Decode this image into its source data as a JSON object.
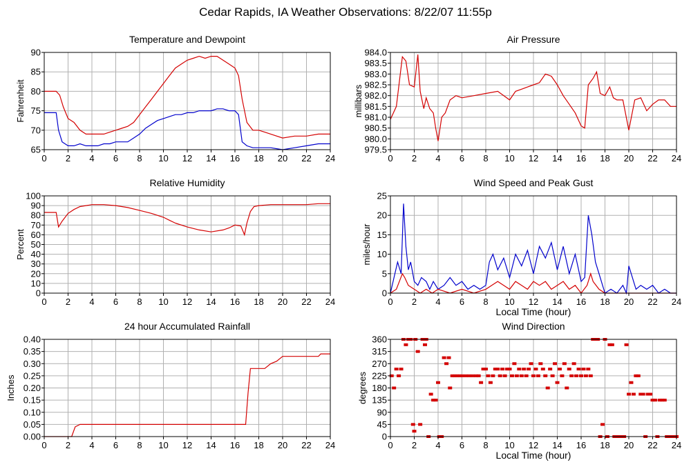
{
  "page": {
    "title": "Cedar Rapids, IA Weather Observations: 8/22/07 11:55p"
  },
  "colors": {
    "red": "#d40000",
    "blue": "#0000cc",
    "grid": "#b0b0b0",
    "frame": "#000000"
  },
  "chart_data": [
    {
      "id": "temp",
      "type": "line",
      "title": "Temperature and Dewpoint",
      "xlabel": "",
      "ylabel": "Fahrenheit",
      "xlim": [
        0,
        24
      ],
      "ylim": [
        65,
        90
      ],
      "xticks": [
        0,
        2,
        4,
        6,
        8,
        10,
        12,
        14,
        16,
        18,
        20,
        22,
        24
      ],
      "yticks": [
        65,
        70,
        75,
        80,
        85,
        90
      ],
      "grid": true,
      "series": [
        {
          "color": "#d40000",
          "x": [
            0,
            1,
            1.3,
            1.6,
            2,
            2.5,
            3,
            3.5,
            4,
            4.5,
            5,
            5.5,
            6,
            6.5,
            7,
            7.5,
            8,
            8.5,
            9,
            9.5,
            10,
            10.5,
            11,
            11.5,
            12,
            12.5,
            13,
            13.5,
            14,
            14.5,
            15,
            15.5,
            16,
            16.3,
            16.6,
            17,
            17.5,
            18,
            19,
            20,
            21,
            22,
            23,
            24
          ],
          "y": [
            80,
            80,
            79,
            76,
            73,
            72,
            70,
            69,
            69,
            69,
            69,
            69.5,
            70,
            70.5,
            71,
            72,
            74,
            76,
            78,
            80,
            82,
            84,
            86,
            87,
            88,
            88.5,
            89,
            88.5,
            89,
            89,
            88,
            87,
            86,
            84,
            78,
            72,
            70,
            70,
            69,
            68,
            68.5,
            68.5,
            69,
            69
          ]
        },
        {
          "color": "#0000cc",
          "x": [
            0,
            1,
            1.2,
            1.5,
            2,
            2.5,
            3,
            3.5,
            4,
            4.5,
            5,
            5.5,
            6,
            6.5,
            7,
            7.5,
            8,
            8.5,
            9,
            9.5,
            10,
            10.5,
            11,
            11.5,
            12,
            12.5,
            13,
            13.5,
            14,
            14.5,
            15,
            15.5,
            16,
            16.3,
            16.6,
            17,
            17.5,
            18,
            19,
            20,
            21,
            22,
            23,
            24
          ],
          "y": [
            74.5,
            74.5,
            70,
            67,
            66,
            66,
            66.5,
            66,
            66,
            66,
            66.5,
            66.5,
            67,
            67,
            67,
            68,
            69,
            70.5,
            71.5,
            72.5,
            73,
            73.5,
            74,
            74,
            74.5,
            74.5,
            75,
            75,
            75,
            75.5,
            75.5,
            75,
            75,
            74,
            67,
            66,
            65.5,
            65.5,
            65.5,
            65,
            65.5,
            66,
            66.5,
            66.5
          ]
        }
      ]
    },
    {
      "id": "pressure",
      "type": "line",
      "title": "Air Pressure",
      "xlabel": "",
      "ylabel": "millibars",
      "xlim": [
        0,
        24
      ],
      "ylim": [
        979.5,
        984.0
      ],
      "xticks": [
        0,
        2,
        4,
        6,
        8,
        10,
        12,
        14,
        16,
        18,
        20,
        22,
        24
      ],
      "yticks": [
        "979.5",
        "980.0",
        "980.5",
        "981.0",
        "981.5",
        "982.0",
        "982.5",
        "983.0",
        "983.5",
        "984.0"
      ],
      "grid": true,
      "series": [
        {
          "color": "#d40000",
          "x": [
            0,
            0.5,
            1,
            1.3,
            1.6,
            2,
            2.3,
            2.5,
            2.8,
            3,
            3.3,
            3.6,
            3.8,
            4,
            4.3,
            4.6,
            5,
            5.5,
            6,
            7,
            8,
            9,
            10,
            10.5,
            11,
            12,
            12.5,
            13,
            13.5,
            14,
            14.5,
            15,
            15.5,
            16,
            16.3,
            16.6,
            17,
            17.3,
            17.6,
            18,
            18.4,
            18.7,
            19,
            19.5,
            20,
            20.5,
            21,
            21.5,
            22,
            22.5,
            23,
            23.5,
            24
          ],
          "y": [
            980.9,
            981.5,
            983.8,
            983.6,
            982.5,
            982.4,
            983.9,
            982.2,
            981.4,
            981.9,
            981.4,
            981.2,
            980.5,
            979.9,
            981.0,
            981.2,
            981.8,
            982.0,
            981.9,
            982.0,
            982.1,
            982.2,
            981.8,
            982.2,
            982.3,
            982.5,
            982.6,
            983.0,
            982.9,
            982.5,
            982.0,
            981.6,
            981.2,
            980.6,
            980.5,
            982.5,
            982.8,
            983.1,
            982.1,
            982.0,
            982.4,
            981.9,
            981.8,
            981.8,
            980.4,
            981.8,
            981.9,
            981.3,
            981.6,
            981.8,
            981.8,
            981.5,
            981.5
          ]
        }
      ]
    },
    {
      "id": "rh",
      "type": "line",
      "title": "Relative Humidity",
      "xlabel": "",
      "ylabel": "Percent",
      "xlim": [
        0,
        24
      ],
      "ylim": [
        0,
        100
      ],
      "xticks": [
        0,
        2,
        4,
        6,
        8,
        10,
        12,
        14,
        16,
        18,
        20,
        22,
        24
      ],
      "yticks": [
        0,
        10,
        20,
        30,
        40,
        50,
        60,
        70,
        80,
        90,
        100
      ],
      "grid": true,
      "series": [
        {
          "color": "#d40000",
          "x": [
            0,
            1,
            1.2,
            1.5,
            2,
            2.5,
            3,
            3.5,
            4,
            4.5,
            5,
            6,
            7,
            8,
            9,
            10,
            10.5,
            11,
            12,
            13,
            14,
            15,
            15.5,
            16,
            16.5,
            16.8,
            17,
            17.3,
            17.6,
            18,
            19,
            20,
            21,
            22,
            23,
            24
          ],
          "y": [
            83,
            83,
            68,
            74,
            82,
            86,
            89,
            90,
            91,
            91,
            91,
            90,
            88,
            85,
            82,
            78,
            75,
            72,
            68,
            65,
            63,
            65,
            67,
            70,
            69,
            60,
            72,
            84,
            89,
            90,
            91,
            91,
            91,
            91,
            92,
            92
          ]
        }
      ]
    },
    {
      "id": "wind",
      "type": "line",
      "title": "Wind Speed and Peak Gust",
      "xlabel": "Local Time (hour)",
      "ylabel": "miles/hour",
      "xlim": [
        0,
        24
      ],
      "ylim": [
        0,
        25
      ],
      "xticks": [
        0,
        2,
        4,
        6,
        8,
        10,
        12,
        14,
        16,
        18,
        20,
        22,
        24
      ],
      "yticks": [
        0,
        5,
        10,
        15,
        20,
        25
      ],
      "grid": true,
      "series": [
        {
          "color": "#0000cc",
          "x": [
            0,
            0.3,
            0.6,
            0.9,
            1.1,
            1.3,
            1.5,
            1.7,
            2,
            2.3,
            2.6,
            3,
            3.3,
            3.6,
            4,
            4.5,
            5,
            5.5,
            6,
            6.5,
            7,
            7.5,
            8,
            8.3,
            8.6,
            9,
            9.5,
            10,
            10.5,
            11,
            11.5,
            12,
            12.5,
            13,
            13.5,
            14,
            14.5,
            15,
            15.5,
            16,
            16.3,
            16.6,
            16.9,
            17.2,
            17.5,
            17.8,
            18,
            18.5,
            19,
            19.5,
            19.8,
            20,
            20.3,
            20.6,
            21,
            21.5,
            22,
            22.5,
            23,
            23.5,
            24
          ],
          "y": [
            0,
            4,
            8,
            5,
            23,
            12,
            6,
            8,
            3,
            2,
            4,
            3,
            1,
            3,
            1,
            2,
            4,
            2,
            3,
            1,
            2,
            1,
            2,
            8,
            10,
            6,
            9,
            4,
            10,
            7,
            11,
            5,
            12,
            9,
            13,
            6,
            12,
            5,
            10,
            3,
            4,
            20,
            15,
            8,
            5,
            2,
            0,
            1,
            0,
            2,
            0,
            7,
            4,
            1,
            2,
            1,
            2,
            0,
            1,
            0,
            0
          ]
        },
        {
          "color": "#d40000",
          "x": [
            0,
            0.5,
            1,
            1.2,
            1.5,
            2,
            2.5,
            3,
            3.5,
            4,
            5,
            6,
            7,
            8,
            8.5,
            9,
            9.5,
            10,
            10.5,
            11,
            11.5,
            12,
            12.5,
            13,
            13.5,
            14,
            14.5,
            15,
            15.5,
            16,
            16.5,
            16.8,
            17,
            17.5,
            18,
            19,
            20,
            21,
            22,
            24
          ],
          "y": [
            0,
            1,
            5,
            4,
            2,
            1,
            0,
            1,
            0,
            1,
            0,
            1,
            0,
            1,
            2,
            3,
            2,
            1,
            3,
            2,
            1,
            3,
            2,
            3,
            1,
            2,
            3,
            1,
            2,
            0,
            2,
            5,
            3,
            1,
            0,
            0,
            0,
            0,
            0,
            0
          ]
        }
      ]
    },
    {
      "id": "rain",
      "type": "line",
      "title": "24 hour Accumulated Rainfall",
      "xlabel": "",
      "ylabel": "Inches",
      "xlim": [
        0,
        24
      ],
      "ylim": [
        0,
        0.4
      ],
      "xticks": [
        0,
        2,
        4,
        6,
        8,
        10,
        12,
        14,
        16,
        18,
        20,
        22,
        24
      ],
      "yticks": [
        "0.00",
        "0.05",
        "0.10",
        "0.15",
        "0.20",
        "0.25",
        "0.30",
        "0.35",
        "0.40"
      ],
      "grid": true,
      "series": [
        {
          "color": "#d40000",
          "x": [
            0,
            2.3,
            2.6,
            3,
            16.9,
            17.1,
            17.3,
            18.5,
            19,
            19.5,
            20,
            20.5,
            21,
            22,
            23,
            23.2,
            24
          ],
          "y": [
            0,
            0,
            0.04,
            0.05,
            0.05,
            0.18,
            0.28,
            0.28,
            0.3,
            0.31,
            0.33,
            0.33,
            0.33,
            0.33,
            0.33,
            0.34,
            0.34
          ]
        }
      ]
    },
    {
      "id": "winddir",
      "type": "scatter",
      "title": "Wind Direction",
      "xlabel": "Local Time (hour)",
      "ylabel": "degrees",
      "xlim": [
        0,
        24
      ],
      "ylim": [
        0,
        360
      ],
      "xticks": [
        0,
        2,
        4,
        6,
        8,
        10,
        12,
        14,
        16,
        18,
        20,
        22,
        24
      ],
      "yticks": [
        0,
        45,
        90,
        135,
        180,
        225,
        270,
        315,
        360
      ],
      "grid": true,
      "series": [
        {
          "color": "#d40000",
          "x": [
            0.1,
            0.3,
            0.5,
            0.7,
            0.9,
            1.1,
            1.3,
            1.5,
            1.7,
            1.9,
            2.0,
            2.1,
            2.3,
            2.5,
            2.7,
            2.9,
            3.0,
            3.2,
            3.4,
            3.6,
            3.8,
            4.0,
            4.1,
            4.3,
            4.5,
            4.7,
            4.9,
            5.0,
            5.2,
            5.4,
            5.6,
            5.8,
            6.0,
            6.3,
            6.6,
            6.9,
            7.2,
            7.4,
            7.6,
            7.8,
            8.0,
            8.2,
            8.4,
            8.6,
            8.8,
            9.0,
            9.2,
            9.4,
            9.6,
            9.8,
            10.0,
            10.2,
            10.4,
            10.6,
            10.8,
            11.0,
            11.2,
            11.4,
            11.6,
            11.8,
            12.0,
            12.2,
            12.4,
            12.6,
            12.8,
            13.0,
            13.2,
            13.4,
            13.6,
            13.8,
            14.0,
            14.2,
            14.4,
            14.6,
            14.8,
            15.0,
            15.2,
            15.4,
            15.6,
            15.8,
            16.0,
            16.2,
            16.4,
            16.6,
            16.8,
            17.0,
            17.2,
            17.4,
            17.6,
            17.8,
            18.0,
            18.2,
            18.4,
            18.6,
            18.8,
            19.0,
            19.2,
            19.4,
            19.6,
            19.8,
            20.0,
            20.2,
            20.4,
            20.6,
            20.8,
            21.0,
            21.2,
            21.4,
            21.6,
            21.8,
            22.0,
            22.2,
            22.4,
            22.6,
            22.8,
            23.0,
            23.2,
            23.4,
            23.6,
            23.8,
            24.0
          ],
          "y": [
            225,
            180,
            250,
            225,
            250,
            360,
            340,
            360,
            360,
            45,
            20,
            360,
            315,
            45,
            360,
            340,
            360,
            0,
            157,
            135,
            135,
            200,
            0,
            0,
            292,
            270,
            292,
            180,
            225,
            225,
            225,
            225,
            225,
            225,
            225,
            225,
            225,
            225,
            200,
            250,
            250,
            225,
            200,
            225,
            250,
            250,
            225,
            250,
            225,
            250,
            250,
            225,
            270,
            225,
            250,
            225,
            250,
            225,
            250,
            270,
            225,
            250,
            225,
            270,
            250,
            225,
            180,
            250,
            225,
            270,
            200,
            250,
            225,
            270,
            180,
            250,
            225,
            270,
            225,
            250,
            225,
            250,
            225,
            250,
            225,
            360,
            360,
            360,
            0,
            45,
            360,
            0,
            340,
            340,
            0,
            0,
            0,
            0,
            0,
            340,
            157,
            200,
            157,
            225,
            225,
            157,
            157,
            0,
            157,
            157,
            135,
            135,
            0,
            135,
            135,
            135,
            0,
            0,
            0,
            0,
            0
          ]
        }
      ]
    }
  ]
}
